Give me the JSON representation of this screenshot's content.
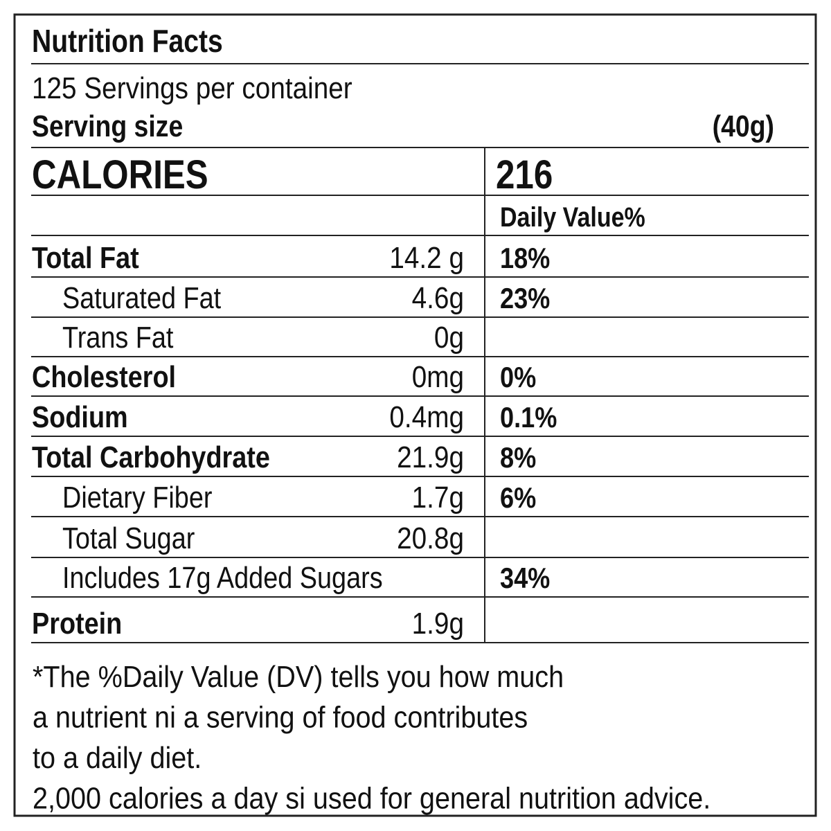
{
  "header": {
    "title": "Nutrition Facts",
    "servings": "125 Servings per container",
    "serving_size_label": "Serving size",
    "serving_size": "(40g)"
  },
  "calories": {
    "label": "CALORIES",
    "value": "216"
  },
  "dv_header": "Daily Value%",
  "rows": [
    {
      "name": "Total Fat",
      "amount": "14.2 g",
      "dv": "18%",
      "bold": true
    },
    {
      "name": "Saturated Fat",
      "amount": "4.6g",
      "dv": "23%",
      "indent": true
    },
    {
      "name": "Trans Fat",
      "amount": "0g",
      "indent": true
    },
    {
      "name": "Cholesterol",
      "amount": "0mg",
      "dv": "0%",
      "bold": true
    },
    {
      "name": "Sodium",
      "amount": "0.4mg",
      "dv": "0.1%",
      "bold": true
    },
    {
      "name": "Total Carbohydrate",
      "amount": "21.9g",
      "dv": "8%",
      "bold": true
    },
    {
      "name": "Dietary Fiber",
      "amount": "1.7g",
      "dv": "6%",
      "indent": true
    },
    {
      "name": "Total Sugar",
      "amount": "20.8g",
      "indent": true
    },
    {
      "name": "Includes 17g Added Sugars",
      "dv": "34%",
      "indent": true
    },
    {
      "name": "Protein",
      "amount": "1.9g",
      "bold": true
    }
  ],
  "footnote": [
    "*The %Daily Value (DV) tells you how much",
    "a nutrient ni a serving of food contributes",
    "to a daily diet.",
    "2,000 calories a day si used for general nutrition advice."
  ]
}
